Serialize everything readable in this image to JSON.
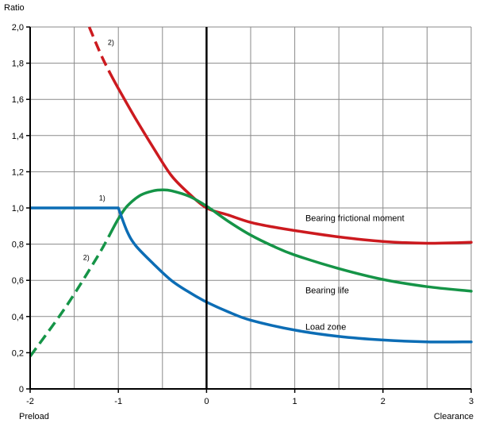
{
  "chart_data": {
    "type": "line",
    "title": "",
    "ylabel": "Ratio",
    "xlabel_left": "Preload",
    "xlabel_right": "Clearance",
    "xlim": [
      -2,
      3
    ],
    "ylim": [
      0,
      2
    ],
    "x_ticks": [
      -2,
      -1,
      0,
      1,
      2,
      3
    ],
    "x_tick_labels": [
      "-2",
      "-1",
      "0",
      "1",
      "2",
      "3"
    ],
    "y_ticks": [
      0,
      0.2,
      0.4,
      0.6,
      0.8,
      1.0,
      1.2,
      1.4,
      1.6,
      1.8,
      2.0
    ],
    "y_tick_labels": [
      "0",
      "0,2",
      "0,4",
      "0,6",
      "0,8",
      "1,0",
      "1,2",
      "1,4",
      "1,6",
      "1,8",
      "2,0"
    ],
    "grid": true,
    "vertical_grid_step": 0.5,
    "series": [
      {
        "name": "Bearing frictional moment",
        "color": "#cc1a1f",
        "dashed_points": [
          [
            -1.33,
            2.0
          ],
          [
            -1.2,
            1.85
          ],
          [
            -1.1,
            1.75
          ]
        ],
        "points": [
          [
            -1.1,
            1.75
          ],
          [
            -1.0,
            1.66
          ],
          [
            -0.8,
            1.49
          ],
          [
            -0.6,
            1.33
          ],
          [
            -0.4,
            1.18
          ],
          [
            -0.2,
            1.08
          ],
          [
            0.0,
            1.0
          ],
          [
            0.25,
            0.96
          ],
          [
            0.5,
            0.92
          ],
          [
            0.75,
            0.895
          ],
          [
            1.0,
            0.875
          ],
          [
            1.5,
            0.84
          ],
          [
            2.0,
            0.815
          ],
          [
            2.5,
            0.805
          ],
          [
            3.0,
            0.81
          ]
        ],
        "label_at": [
          1.12,
          0.945
        ]
      },
      {
        "name": "Bearing life",
        "color": "#159447",
        "dashed_points": [
          [
            -2.0,
            0.18
          ],
          [
            -1.6,
            0.45
          ],
          [
            -1.25,
            0.72
          ],
          [
            -1.1,
            0.85
          ]
        ],
        "points": [
          [
            -1.1,
            0.85
          ],
          [
            -1.0,
            0.94
          ],
          [
            -0.9,
            1.01
          ],
          [
            -0.75,
            1.07
          ],
          [
            -0.6,
            1.095
          ],
          [
            -0.5,
            1.1
          ],
          [
            -0.4,
            1.095
          ],
          [
            -0.2,
            1.065
          ],
          [
            0.0,
            1.01
          ],
          [
            0.25,
            0.925
          ],
          [
            0.5,
            0.85
          ],
          [
            0.75,
            0.79
          ],
          [
            1.0,
            0.74
          ],
          [
            1.5,
            0.665
          ],
          [
            2.0,
            0.605
          ],
          [
            2.5,
            0.565
          ],
          [
            3.0,
            0.54
          ]
        ],
        "label_at": [
          1.12,
          0.545
        ]
      },
      {
        "name": "Load zone",
        "color": "#0c6db5",
        "dashed_points": [],
        "points": [
          [
            -2.0,
            1.0
          ],
          [
            -1.0,
            1.0
          ],
          [
            -0.9,
            0.87
          ],
          [
            -0.8,
            0.79
          ],
          [
            -0.6,
            0.69
          ],
          [
            -0.4,
            0.6
          ],
          [
            -0.2,
            0.535
          ],
          [
            0.0,
            0.48
          ],
          [
            0.25,
            0.425
          ],
          [
            0.5,
            0.38
          ],
          [
            1.0,
            0.325
          ],
          [
            1.5,
            0.29
          ],
          [
            2.0,
            0.27
          ],
          [
            2.5,
            0.26
          ],
          [
            3.0,
            0.26
          ]
        ],
        "label_at": [
          1.12,
          0.345
        ]
      }
    ],
    "annotations": [
      {
        "text": "2)",
        "x": -1.12,
        "y": 1.915
      },
      {
        "text": "1)",
        "x": -1.22,
        "y": 1.055
      },
      {
        "text": "2)",
        "x": -1.4,
        "y": 0.725
      }
    ]
  }
}
